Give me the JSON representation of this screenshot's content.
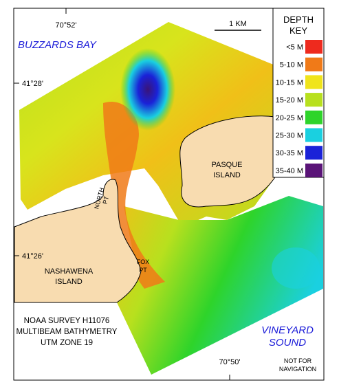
{
  "map": {
    "longitude_ticks": [
      "70°52'",
      "70°50'"
    ],
    "latitude_ticks": [
      "41°28'",
      "41°26'"
    ],
    "scale_bar": "1 KM",
    "water_labels": [
      [
        "BUZZARDS",
        "BAY"
      ],
      [
        "VINEYARD",
        "SOUND"
      ]
    ],
    "land_labels": {
      "pasque": [
        "PASQUE",
        "ISLAND"
      ],
      "north_pt": [
        "NORTH",
        "PT"
      ],
      "nashawena": [
        "NASHAWENA",
        "ISLAND"
      ],
      "fox_pt": [
        "FOX",
        "PT"
      ]
    },
    "survey_note": [
      "NOAA SURVEY H11076",
      "MULTIBEAM BATHYMETRY",
      "UTM ZONE 19"
    ],
    "disclaimer": [
      "NOT FOR",
      "NAVIGATION"
    ],
    "depth_key": {
      "title": [
        "DEPTH",
        "KEY"
      ],
      "entries": [
        {
          "label": "<5 M",
          "color": "#ee2a1e"
        },
        {
          "label": "5-10 M",
          "color": "#f07a18"
        },
        {
          "label": "10-15 M",
          "color": "#f0e41a"
        },
        {
          "label": "15-20 M",
          "color": "#b8e01e"
        },
        {
          "label": "20-25 M",
          "color": "#2ed42a"
        },
        {
          "label": "25-30 M",
          "color": "#1ad0e0"
        },
        {
          "label": "30-35 M",
          "color": "#1a22d8"
        },
        {
          "label": "35-40 M",
          "color": "#5a1478"
        }
      ]
    }
  }
}
